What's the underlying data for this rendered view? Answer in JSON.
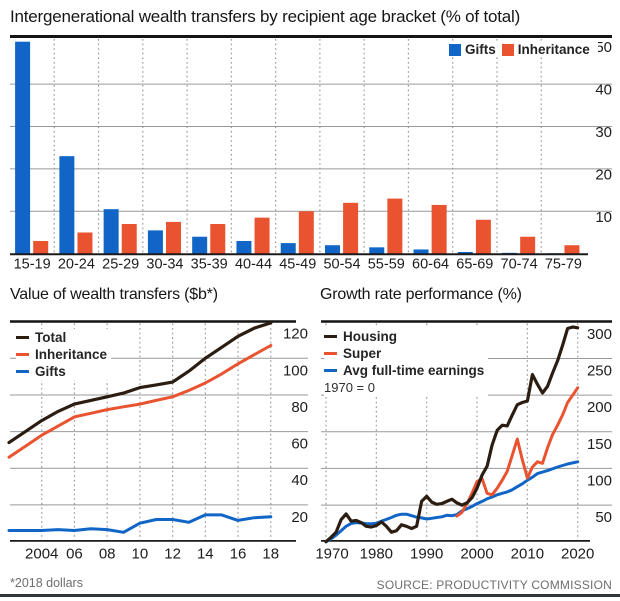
{
  "page": {
    "title": "Intergenerational wealth transfers by recipient age bracket (% of total)",
    "footnote": "*2018 dollars",
    "source": "SOURCE: PRODUCTIVITY COMMISSION"
  },
  "colors": {
    "gifts_blue": "#1065c6",
    "inheritance_orange": "#e95330",
    "line_black": "#2b1d11",
    "grid_gray": "#999999",
    "axis_black": "#1a1a1a",
    "text_dark": "#1d1d1d",
    "muted_gray": "#6e6e6e",
    "rule_dark": "#33353d"
  },
  "chart_data": [
    {
      "id": "age-bracket-bars",
      "type": "bar",
      "title": "Intergenerational wealth transfers by recipient age bracket (% of total)",
      "categories": [
        "15-19",
        "20-24",
        "25-29",
        "30-34",
        "35-39",
        "40-44",
        "45-49",
        "50-54",
        "55-59",
        "60-64",
        "65-69",
        "70-74",
        "75-79"
      ],
      "series": [
        {
          "name": "Gifts",
          "color": "gifts_blue",
          "values": [
            50,
            23,
            10.5,
            5.5,
            4,
            3,
            2.5,
            2,
            1.5,
            1,
            0.4,
            0.2,
            0.1
          ]
        },
        {
          "name": "Inheritance",
          "color": "inheritance_orange",
          "values": [
            3,
            5,
            7,
            7.5,
            7,
            8.5,
            10,
            12,
            13,
            11.5,
            8,
            4,
            2
          ]
        }
      ],
      "ylabel": "% of total",
      "ylim": [
        0,
        51
      ],
      "yticks": [
        10,
        20,
        30,
        40,
        50
      ],
      "legend_position": "top-right",
      "grid": "horizontal solid gray, vertical dotted between category groups"
    },
    {
      "id": "wealth-transfers-value",
      "type": "line",
      "title": "Value of wealth transfers ($b*)",
      "footnote": "*2018 dollars",
      "x_start": 2002,
      "x_step": 1,
      "xticks": [
        2004,
        2006,
        2008,
        2010,
        2012,
        2014,
        2016,
        2018
      ],
      "xtick_labels": [
        "2004",
        "06",
        "08",
        "10",
        "12",
        "14",
        "16",
        "18"
      ],
      "xtick_label_dx": [
        0,
        0,
        0,
        0,
        0,
        0,
        0,
        0
      ],
      "yticks": [
        20,
        40,
        60,
        80,
        100,
        120
      ],
      "ylim": [
        0,
        122
      ],
      "legend_position": "top-left",
      "grid": "horizontal solid gray, vertical dotted at ticks",
      "series": [
        {
          "name": "Total",
          "color": "line_black",
          "values": [
            54,
            60,
            66,
            71,
            75,
            77,
            79,
            81,
            84,
            85.5,
            87,
            93,
            100,
            106,
            112,
            116.5,
            120.5
          ]
        },
        {
          "name": "Inheritance",
          "color": "inheritance_orange",
          "values": [
            46,
            52,
            58,
            63,
            68,
            70,
            72,
            73.5,
            75,
            77,
            79,
            82.5,
            86.5,
            91.5,
            97,
            102,
            107
          ]
        },
        {
          "name": "Gifts",
          "color": "gifts_blue",
          "values": [
            6,
            6,
            6,
            6.5,
            6,
            7,
            6.5,
            5,
            10,
            12,
            12,
            10.5,
            14.5,
            14.5,
            11.5,
            13,
            13.5
          ]
        }
      ]
    },
    {
      "id": "growth-rate-performance",
      "type": "line",
      "title": "Growth rate performance (%)",
      "note": "1970 = 0",
      "x_start": 1970,
      "x_step": 1,
      "xticks": [
        1970,
        1980,
        1990,
        2000,
        2010,
        2020
      ],
      "xtick_labels": [
        "1970",
        "1980",
        "1990",
        "2000",
        "2010",
        "2020"
      ],
      "xtick_label_dx": [
        6,
        0,
        0,
        0,
        0,
        0
      ],
      "yticks": [
        50,
        100,
        150,
        200,
        250,
        300
      ],
      "ylim": [
        0,
        303
      ],
      "legend_position": "top-left",
      "grid": "horizontal solid gray, vertical dotted at decade ticks",
      "series": [
        {
          "name": "Housing",
          "color": "line_black",
          "values": [
            0,
            6,
            13,
            30,
            38,
            28,
            29,
            26,
            21,
            20,
            22,
            27,
            21,
            13,
            15,
            23,
            21,
            18,
            21,
            55,
            62,
            54,
            51,
            52,
            55,
            58,
            53,
            50,
            53,
            60,
            73,
            91,
            103,
            132,
            152,
            159,
            158,
            173,
            187,
            190,
            192,
            228,
            215,
            203,
            212,
            230,
            247,
            268,
            291,
            293,
            292
          ]
        },
        {
          "name": "Super",
          "color": "inheritance_orange",
          "values": [
            null,
            null,
            null,
            null,
            null,
            null,
            null,
            null,
            null,
            null,
            null,
            null,
            null,
            null,
            null,
            null,
            null,
            null,
            null,
            null,
            null,
            null,
            null,
            null,
            null,
            null,
            35,
            40,
            52,
            66,
            82,
            86,
            66,
            64,
            73,
            84,
            96,
            118,
            140,
            112,
            87,
            102,
            109,
            107,
            128,
            146,
            159,
            173,
            190,
            200,
            210
          ]
        },
        {
          "name": "Avg full-time earnings",
          "color": "gifts_blue",
          "values": [
            0,
            4,
            9,
            15,
            21,
            25,
            26,
            25.5,
            24.5,
            24.5,
            25,
            28,
            30.5,
            33,
            36,
            37.5,
            37.5,
            35.5,
            33.5,
            32.5,
            31,
            32,
            33,
            34,
            36,
            35.5,
            37,
            42,
            45,
            48,
            52,
            55,
            58.5,
            61,
            64,
            66,
            68,
            71,
            75,
            79,
            84,
            88,
            93,
            95,
            97,
            99.5,
            102,
            104,
            106,
            107.5,
            109
          ]
        }
      ]
    }
  ]
}
